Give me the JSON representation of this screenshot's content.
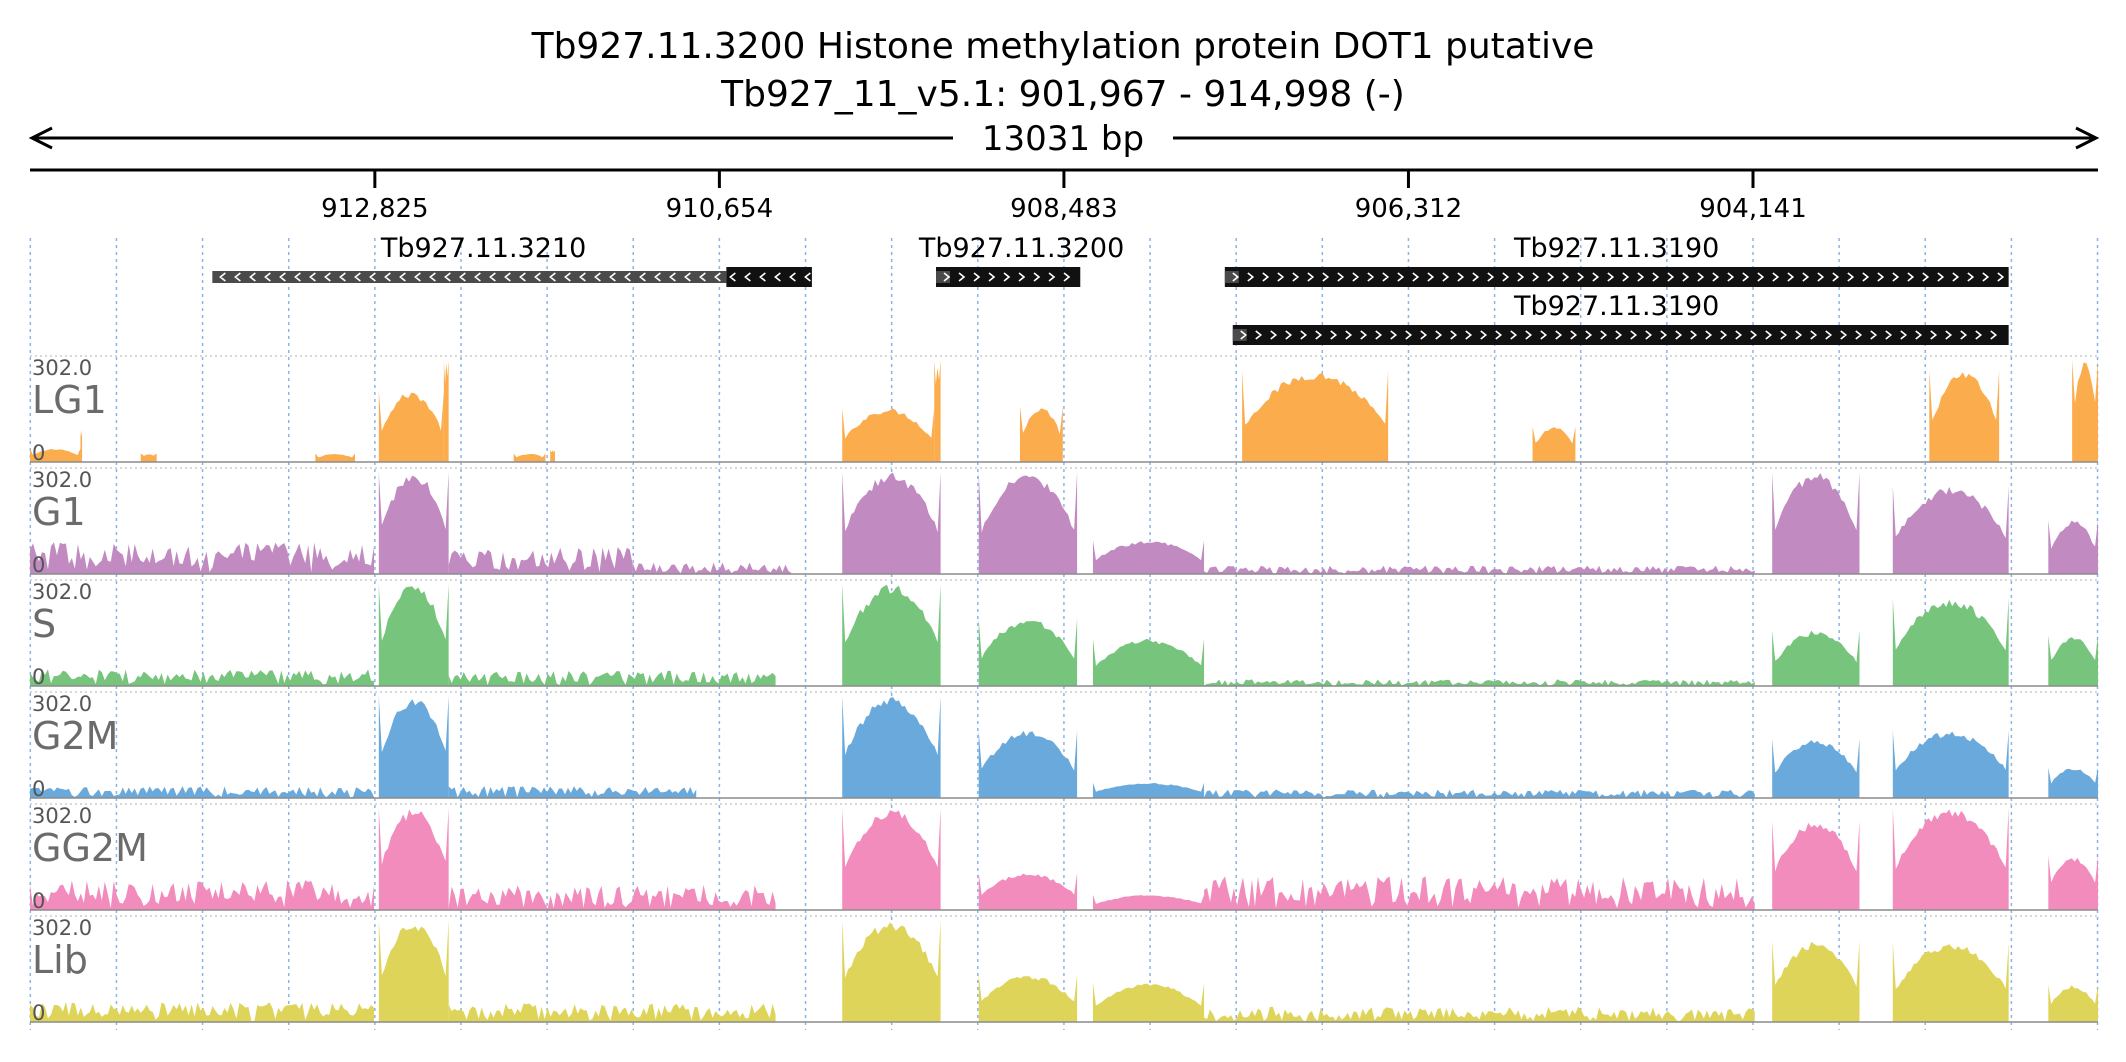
{
  "chart_data": {
    "type": "area",
    "title": "Tb927.11.3200  Histone methylation protein DOT1  putative",
    "subtitle": "Tb927_11_v5.1: 901,967 - 914,998 (-)",
    "span_label": "13031 bp",
    "x_range": [
      914998,
      901967
    ],
    "x_ticks": [
      {
        "value": 912825,
        "label": "912,825"
      },
      {
        "value": 910654,
        "label": "910,654"
      },
      {
        "value": 908483,
        "label": "908,483"
      },
      {
        "value": 906312,
        "label": "906,312"
      },
      {
        "value": 904141,
        "label": "904,141"
      }
    ],
    "genes": [
      {
        "name": "Tb927.11.3210",
        "strand": "-",
        "start": 913849,
        "end": 910071,
        "thick_start": 910610,
        "label_pos": 912140,
        "row": 0
      },
      {
        "name": "Tb927.11.3200",
        "strand": "+",
        "start": 909289,
        "end": 908380,
        "label_pos": 908750,
        "row": 0
      },
      {
        "name": "Tb927.11.3190",
        "strand": "+",
        "start": 907469,
        "end": 902530,
        "label_pos": 905000,
        "row": 0
      },
      {
        "name": "Tb927.11.3190",
        "strand": "+",
        "start": 907419,
        "end": 902530,
        "label_pos": 905000,
        "row": 1
      }
    ],
    "y_range": [
      0,
      302.0
    ],
    "y_max_label": "302.0",
    "y_min_label": "0",
    "series": [
      {
        "name": "LG1",
        "color": "#fbac4d"
      },
      {
        "name": "G1",
        "color": "#c18bc2"
      },
      {
        "name": "S",
        "color": "#77c47c"
      },
      {
        "name": "G2M",
        "color": "#6aa9dc"
      },
      {
        "name": "GG2M",
        "color": "#f28cbd"
      },
      {
        "name": "Lib",
        "color": "#dfd45a"
      }
    ],
    "coverage_blocks": {
      "LG1": [
        {
          "start": 914998,
          "end": 914680,
          "peak": 40
        },
        {
          "start": 914680,
          "end": 914670,
          "peak": 95
        },
        {
          "start": 914300,
          "end": 914200,
          "peak": 25
        },
        {
          "start": 913200,
          "end": 912950,
          "peak": 25
        },
        {
          "start": 912800,
          "end": 912390,
          "peak": 210
        },
        {
          "start": 912390,
          "end": 912360,
          "peak": 302
        },
        {
          "start": 911950,
          "end": 911750,
          "peak": 25
        },
        {
          "start": 911720,
          "end": 911690,
          "peak": 35
        },
        {
          "start": 909880,
          "end": 909300,
          "peak": 160
        },
        {
          "start": 909300,
          "end": 909260,
          "peak": 302
        },
        {
          "start": 908760,
          "end": 908490,
          "peak": 165
        },
        {
          "start": 907360,
          "end": 906440,
          "peak": 270
        },
        {
          "start": 905530,
          "end": 905260,
          "peak": 105
        },
        {
          "start": 903030,
          "end": 902590,
          "peak": 270
        },
        {
          "start": 902130,
          "end": 901967,
          "peak": 302
        }
      ],
      "G1": [
        {
          "start": 914998,
          "end": 912830,
          "peak": 95
        },
        {
          "start": 912800,
          "end": 912360,
          "peak": 302
        },
        {
          "start": 912360,
          "end": 911200,
          "peak": 80
        },
        {
          "start": 911200,
          "end": 910200,
          "peak": 35
        },
        {
          "start": 909880,
          "end": 909260,
          "peak": 302
        },
        {
          "start": 909020,
          "end": 908400,
          "peak": 302
        },
        {
          "start": 908300,
          "end": 907600,
          "peak": 100
        },
        {
          "start": 907600,
          "end": 904130,
          "peak": 25
        },
        {
          "start": 904020,
          "end": 903470,
          "peak": 302
        },
        {
          "start": 903260,
          "end": 902530,
          "peak": 260
        },
        {
          "start": 902280,
          "end": 901967,
          "peak": 160
        }
      ],
      "S": [
        {
          "start": 914998,
          "end": 912830,
          "peak": 50
        },
        {
          "start": 912800,
          "end": 912360,
          "peak": 302
        },
        {
          "start": 912360,
          "end": 910300,
          "peak": 45
        },
        {
          "start": 909880,
          "end": 909260,
          "peak": 302
        },
        {
          "start": 909020,
          "end": 908400,
          "peak": 200
        },
        {
          "start": 908300,
          "end": 907600,
          "peak": 140
        },
        {
          "start": 907600,
          "end": 904130,
          "peak": 20
        },
        {
          "start": 904020,
          "end": 903470,
          "peak": 165
        },
        {
          "start": 903260,
          "end": 902530,
          "peak": 260
        },
        {
          "start": 902280,
          "end": 901967,
          "peak": 150
        }
      ],
      "G2M": [
        {
          "start": 914998,
          "end": 912830,
          "peak": 35
        },
        {
          "start": 912800,
          "end": 912360,
          "peak": 302
        },
        {
          "start": 912360,
          "end": 910800,
          "peak": 35
        },
        {
          "start": 909880,
          "end": 909260,
          "peak": 302
        },
        {
          "start": 909020,
          "end": 908400,
          "peak": 200
        },
        {
          "start": 908300,
          "end": 907600,
          "peak": 45
        },
        {
          "start": 907600,
          "end": 904130,
          "peak": 25
        },
        {
          "start": 904020,
          "end": 903470,
          "peak": 175
        },
        {
          "start": 903260,
          "end": 902530,
          "peak": 200
        },
        {
          "start": 902280,
          "end": 901967,
          "peak": 90
        }
      ],
      "GG2M": [
        {
          "start": 914998,
          "end": 912830,
          "peak": 90
        },
        {
          "start": 912800,
          "end": 912360,
          "peak": 302
        },
        {
          "start": 912360,
          "end": 910300,
          "peak": 75
        },
        {
          "start": 909880,
          "end": 909260,
          "peak": 302
        },
        {
          "start": 909020,
          "end": 908400,
          "peak": 110
        },
        {
          "start": 908300,
          "end": 907600,
          "peak": 45
        },
        {
          "start": 907600,
          "end": 904130,
          "peak": 100
        },
        {
          "start": 904020,
          "end": 903470,
          "peak": 265
        },
        {
          "start": 903260,
          "end": 902530,
          "peak": 302
        },
        {
          "start": 902280,
          "end": 901967,
          "peak": 160
        }
      ],
      "Lib": [
        {
          "start": 914998,
          "end": 912830,
          "peak": 60
        },
        {
          "start": 912800,
          "end": 912360,
          "peak": 302
        },
        {
          "start": 912360,
          "end": 910300,
          "peak": 55
        },
        {
          "start": 909880,
          "end": 909260,
          "peak": 302
        },
        {
          "start": 909020,
          "end": 908400,
          "peak": 140
        },
        {
          "start": 908300,
          "end": 907600,
          "peak": 115
        },
        {
          "start": 907600,
          "end": 904130,
          "peak": 45
        },
        {
          "start": 904020,
          "end": 903470,
          "peak": 240
        },
        {
          "start": 903260,
          "end": 902530,
          "peak": 235
        },
        {
          "start": 902280,
          "end": 901967,
          "peak": 110
        }
      ]
    },
    "grid": true,
    "legend": "track-labels-left"
  }
}
